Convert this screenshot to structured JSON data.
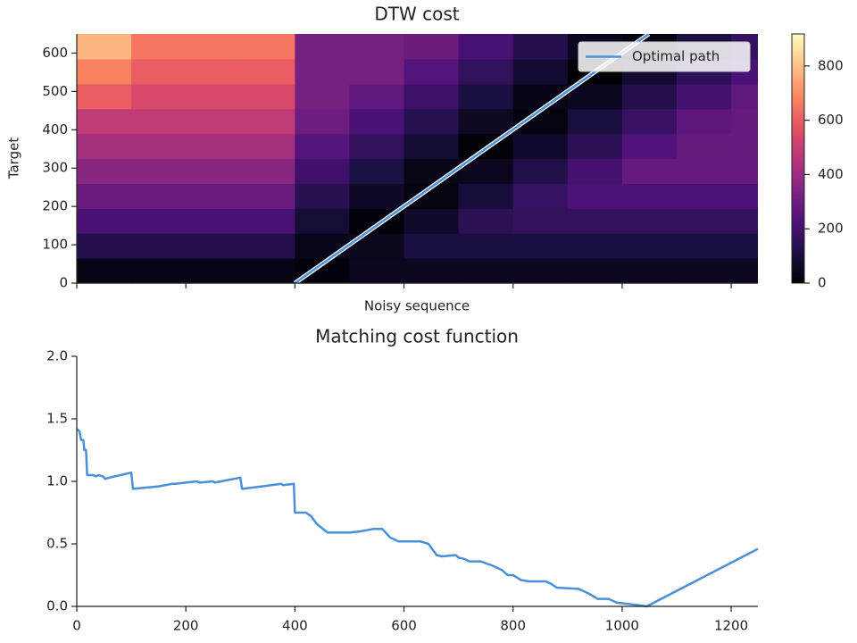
{
  "chart_data": [
    {
      "type": "heatmap",
      "title": "DTW cost",
      "xlabel": "Noisy sequence",
      "ylabel": "Target",
      "colormap": "magma",
      "xbins": [
        0,
        100,
        200,
        300,
        400,
        500,
        600,
        700,
        800,
        900,
        1000,
        1100,
        1200,
        1249
      ],
      "ybins": [
        0,
        65,
        130,
        195,
        260,
        325,
        390,
        455,
        520,
        585,
        650
      ],
      "z": [
        [
          30,
          30,
          30,
          30,
          14,
          49,
          49,
          49,
          49,
          49,
          49,
          49,
          49
        ],
        [
          130,
          130,
          130,
          130,
          38,
          42,
          107,
          107,
          107,
          107,
          107,
          107,
          107
        ],
        [
          220,
          220,
          220,
          220,
          90,
          10,
          70,
          150,
          166,
          166,
          166,
          166,
          166
        ],
        [
          290,
          290,
          290,
          290,
          142,
          62,
          18,
          98,
          178,
          224,
          224,
          224,
          224
        ],
        [
          360,
          360,
          360,
          360,
          194,
          114,
          34,
          46,
          126,
          206,
          280,
          280,
          280
        ],
        [
          420,
          420,
          420,
          420,
          246,
          166,
          86,
          6,
          74,
          154,
          234,
          280,
          280
        ],
        [
          480,
          480,
          480,
          480,
          298,
          218,
          138,
          58,
          22,
          102,
          182,
          262,
          280
        ],
        [
          600,
          540,
          540,
          540,
          320,
          270,
          190,
          110,
          30,
          50,
          130,
          210,
          270
        ],
        [
          680,
          600,
          600,
          600,
          320,
          320,
          242,
          162,
          82,
          2,
          78,
          158,
          218
        ],
        [
          780,
          650,
          650,
          650,
          320,
          320,
          294,
          214,
          134,
          54,
          26,
          106,
          166
        ]
      ],
      "clim": [
        0,
        918
      ],
      "cticks": [
        0,
        200,
        400,
        600,
        800
      ],
      "xlim": [
        0,
        1249
      ],
      "xticks": [
        0,
        200,
        400,
        600,
        800,
        1000,
        1200
      ],
      "ylim": [
        0,
        650
      ],
      "yticks": [
        0,
        100,
        200,
        300,
        400,
        500,
        600
      ],
      "legend": "upper right",
      "series": [
        {
          "name": "Optimal path",
          "color": "#4a90d9",
          "x": [
            400,
            1049
          ],
          "values": [
            0,
            650
          ]
        }
      ]
    },
    {
      "type": "line",
      "title": "Matching cost function",
      "x": [
        0,
        5,
        8,
        12,
        14,
        17,
        19,
        30,
        35,
        40,
        48,
        52,
        60,
        100,
        103,
        150,
        175,
        180,
        200,
        220,
        225,
        250,
        253,
        300,
        303,
        340,
        375,
        378,
        398,
        400,
        420,
        430,
        440,
        460,
        500,
        520,
        545,
        560,
        575,
        590,
        630,
        645,
        660,
        670,
        695,
        700,
        710,
        720,
        740,
        760,
        780,
        790,
        800,
        815,
        830,
        860,
        870,
        880,
        920,
        940,
        955,
        975,
        990,
        1030,
        1045,
        1249
      ],
      "series": [
        {
          "color": "#4a90d9",
          "values": [
            1.42,
            1.4,
            1.33,
            1.33,
            1.25,
            1.25,
            1.05,
            1.05,
            1.04,
            1.05,
            1.04,
            1.02,
            1.03,
            1.07,
            0.94,
            0.96,
            0.98,
            0.98,
            0.99,
            1.0,
            0.99,
            1.0,
            0.99,
            1.03,
            0.94,
            0.96,
            0.98,
            0.97,
            0.98,
            0.75,
            0.75,
            0.72,
            0.66,
            0.59,
            0.59,
            0.6,
            0.62,
            0.62,
            0.55,
            0.52,
            0.52,
            0.5,
            0.41,
            0.4,
            0.41,
            0.39,
            0.38,
            0.36,
            0.36,
            0.33,
            0.29,
            0.25,
            0.25,
            0.21,
            0.2,
            0.2,
            0.18,
            0.15,
            0.14,
            0.1,
            0.06,
            0.06,
            0.03,
            0.01,
            0.0,
            0.46
          ]
        }
      ],
      "xlim": [
        0,
        1249
      ],
      "xticks": [
        0,
        200,
        400,
        600,
        800,
        1000,
        1200
      ],
      "ylim": [
        0,
        2
      ],
      "yticks": [
        {
          "value": 0,
          "label": "0.0"
        },
        {
          "value": 0.5,
          "label": "0.5"
        },
        {
          "value": 1,
          "label": "1.0"
        },
        {
          "value": 1.5,
          "label": "1.5"
        },
        {
          "value": 2,
          "label": "2.0"
        }
      ]
    }
  ]
}
